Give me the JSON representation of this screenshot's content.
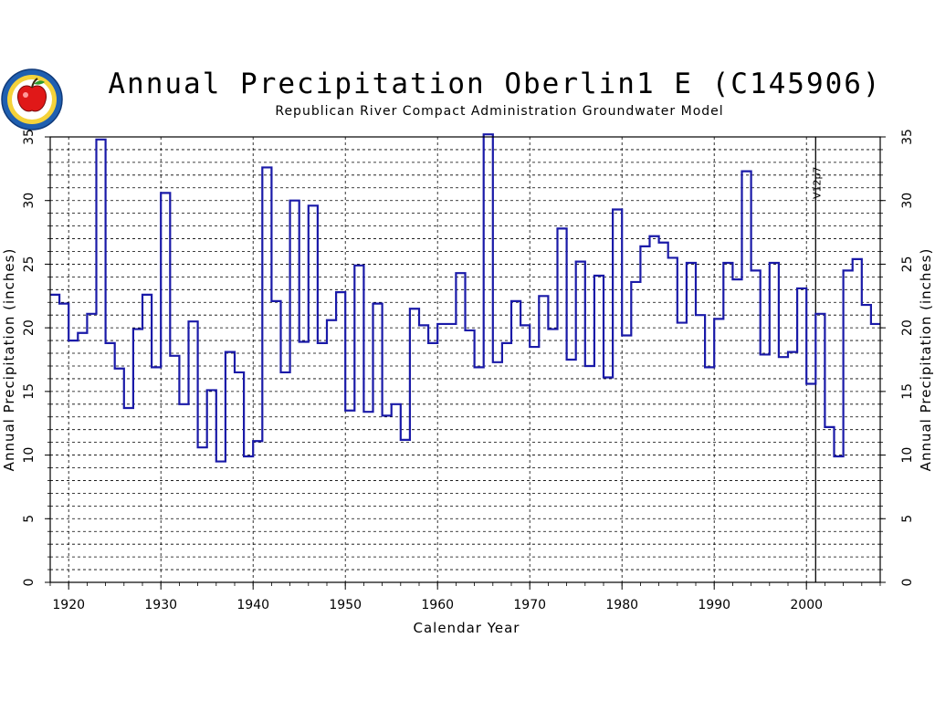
{
  "header": {
    "title": "Annual Precipitation Oberlin1 E (C145906)",
    "subtitle": "Republican River Compact Administration Groundwater Model"
  },
  "colors": {
    "line": "#1a1aa8",
    "grid": "#000000",
    "logo_ring": "#1f5fb0",
    "logo_apple": "#e01818"
  },
  "chart_data": {
    "type": "line",
    "step": true,
    "xlabel": "Calendar Year",
    "ylabel_left": "Annual Precipitation (inches)",
    "ylabel_right": "Annual Precipitation (inches)",
    "xlim": [
      1918,
      2008
    ],
    "ylim": [
      0,
      35
    ],
    "x_ticks": [
      "1920",
      "1930",
      "1940",
      "1950",
      "1960",
      "1970",
      "1980",
      "1990",
      "2000"
    ],
    "y_ticks": [
      "0",
      "5",
      "10",
      "15",
      "20",
      "25",
      "30",
      "35"
    ],
    "grid": true,
    "annotation": {
      "label": "V12p7",
      "x": 2001
    },
    "series": [
      {
        "x": [
          1918,
          1919,
          1920,
          1921,
          1922,
          1923,
          1924,
          1925,
          1926,
          1927,
          1928,
          1929,
          1930,
          1931,
          1932,
          1933,
          1934,
          1935,
          1936,
          1937,
          1938,
          1939,
          1940,
          1941,
          1942,
          1943,
          1944,
          1945,
          1946,
          1947,
          1948,
          1949,
          1950,
          1951,
          1952,
          1953,
          1954,
          1955,
          1956,
          1957,
          1958,
          1959,
          1960,
          1961,
          1962,
          1963,
          1964,
          1965,
          1966,
          1967,
          1968,
          1969,
          1970,
          1971,
          1972,
          1973,
          1974,
          1975,
          1976,
          1977,
          1978,
          1979,
          1980,
          1981,
          1982,
          1983,
          1984,
          1985,
          1986,
          1987,
          1988,
          1989,
          1990,
          1991,
          1992,
          1993,
          1994,
          1995,
          1996,
          1997,
          1998,
          1999,
          2000,
          2001,
          2002,
          2003,
          2004,
          2005,
          2006,
          2007
        ],
        "values": [
          22.6,
          21.9,
          19.0,
          19.6,
          21.1,
          34.8,
          18.8,
          16.8,
          13.7,
          19.9,
          22.6,
          16.9,
          30.6,
          17.8,
          14.0,
          20.5,
          10.6,
          15.1,
          9.5,
          18.1,
          16.5,
          9.9,
          11.1,
          32.6,
          22.1,
          16.5,
          30.0,
          18.9,
          29.6,
          18.8,
          20.6,
          22.8,
          13.5,
          24.9,
          13.4,
          21.9,
          13.1,
          14.0,
          11.2,
          21.5,
          20.2,
          18.8,
          20.3,
          20.3,
          24.3,
          19.8,
          16.9,
          35.2,
          17.3,
          18.8,
          22.1,
          20.2,
          18.5,
          22.5,
          19.9,
          27.8,
          17.5,
          25.2,
          17.0,
          24.1,
          16.1,
          29.3,
          19.4,
          23.6,
          26.4,
          27.2,
          26.7,
          25.5,
          20.4,
          25.1,
          21.0,
          16.9,
          20.7,
          25.1,
          23.8,
          32.3,
          24.5,
          17.9,
          25.1,
          17.7,
          18.1,
          23.1,
          15.6,
          21.1,
          12.2,
          9.9,
          24.5,
          25.4,
          21.8,
          20.3
        ]
      }
    ]
  }
}
